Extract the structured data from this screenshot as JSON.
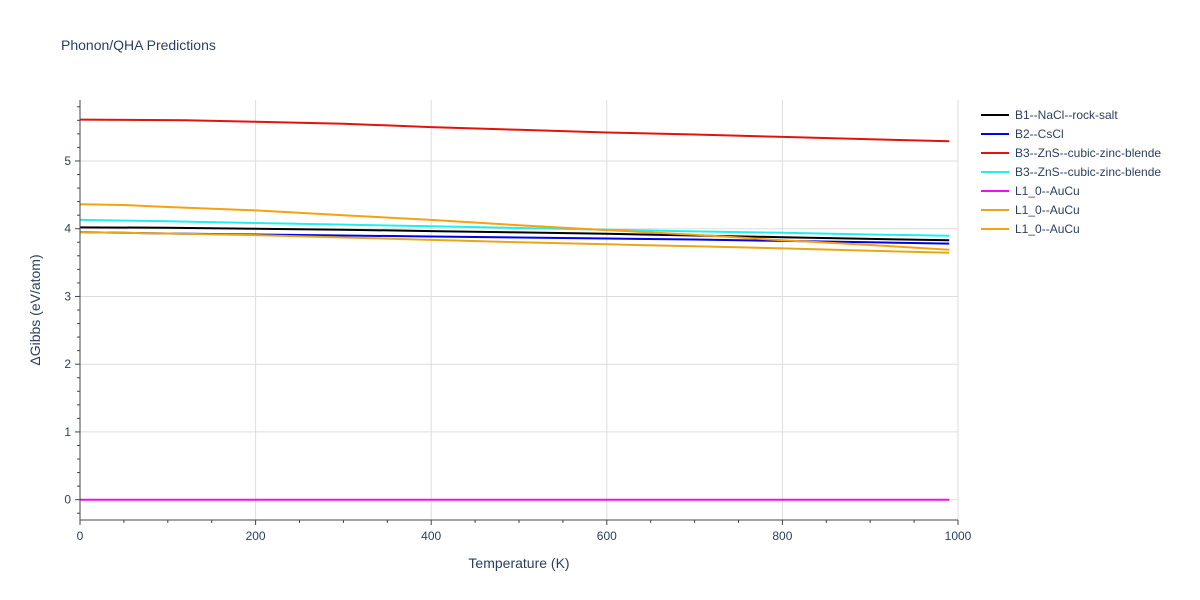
{
  "chart_data": {
    "type": "line",
    "title": "Phonon/QHA Predictions",
    "xlabel": "Temperature (K)",
    "ylabel": "ΔGibbs (eV/atom)",
    "xlim": [
      0,
      1000
    ],
    "ylim": [
      -0.3,
      5.9
    ],
    "xticks": [
      0,
      200,
      400,
      600,
      800,
      1000
    ],
    "yticks": [
      0,
      1,
      2,
      3,
      4,
      5
    ],
    "grid": true,
    "legend_position": "right",
    "series": [
      {
        "name": "B1--NaCl--rock-salt",
        "color": "#000000",
        "x": [
          0,
          100,
          200,
          300,
          400,
          500,
          600,
          700,
          800,
          900,
          990
        ],
        "y": [
          4.02,
          4.015,
          4.0,
          3.985,
          3.965,
          3.945,
          3.925,
          3.9,
          3.875,
          3.85,
          3.83
        ]
      },
      {
        "name": "B2--CsCl",
        "color": "#0000ee",
        "x": [
          0,
          100,
          200,
          300,
          400,
          500,
          600,
          700,
          800,
          900,
          990
        ],
        "y": [
          3.95,
          3.93,
          3.915,
          3.9,
          3.885,
          3.87,
          3.855,
          3.84,
          3.82,
          3.8,
          3.78
        ]
      },
      {
        "name": "B3--ZnS--cubic-zinc-blende",
        "color": "#e0140a",
        "x": [
          0,
          120,
          200,
          300,
          400,
          500,
          600,
          700,
          800,
          900,
          990
        ],
        "y": [
          5.61,
          5.6,
          5.58,
          5.55,
          5.5,
          5.46,
          5.42,
          5.39,
          5.355,
          5.32,
          5.29
        ]
      },
      {
        "name": "B3--ZnS--cubic-zinc-blende",
        "color": "#22eeee",
        "x": [
          0,
          100,
          200,
          300,
          400,
          500,
          600,
          700,
          800,
          900,
          990
        ],
        "y": [
          4.13,
          4.11,
          4.085,
          4.06,
          4.035,
          4.01,
          3.985,
          3.96,
          3.94,
          3.915,
          3.895
        ]
      },
      {
        "name": "L1_0--AuCu",
        "color": "#ee11ee",
        "x": [
          0,
          990
        ],
        "y": [
          0.0,
          0.0
        ]
      },
      {
        "name": "L1_0--AuCu",
        "color": "#e6a817",
        "x": [
          0,
          100,
          200,
          300,
          400,
          500,
          600,
          700,
          800,
          900,
          990
        ],
        "y": [
          3.95,
          3.93,
          3.905,
          3.87,
          3.835,
          3.8,
          3.77,
          3.74,
          3.71,
          3.675,
          3.645
        ]
      },
      {
        "name": "L1_0--AuCu",
        "color": "#f5a20f",
        "x": [
          0,
          50,
          100,
          200,
          300,
          400,
          500,
          600,
          700,
          800,
          900,
          990
        ],
        "y": [
          4.36,
          4.35,
          4.32,
          4.27,
          4.2,
          4.13,
          4.05,
          3.98,
          3.91,
          3.83,
          3.76,
          3.69
        ]
      }
    ]
  },
  "colors": {
    "grid": "#dddddd",
    "axis_text": "#2a3f5f",
    "title_text": "#2a3f5f"
  }
}
